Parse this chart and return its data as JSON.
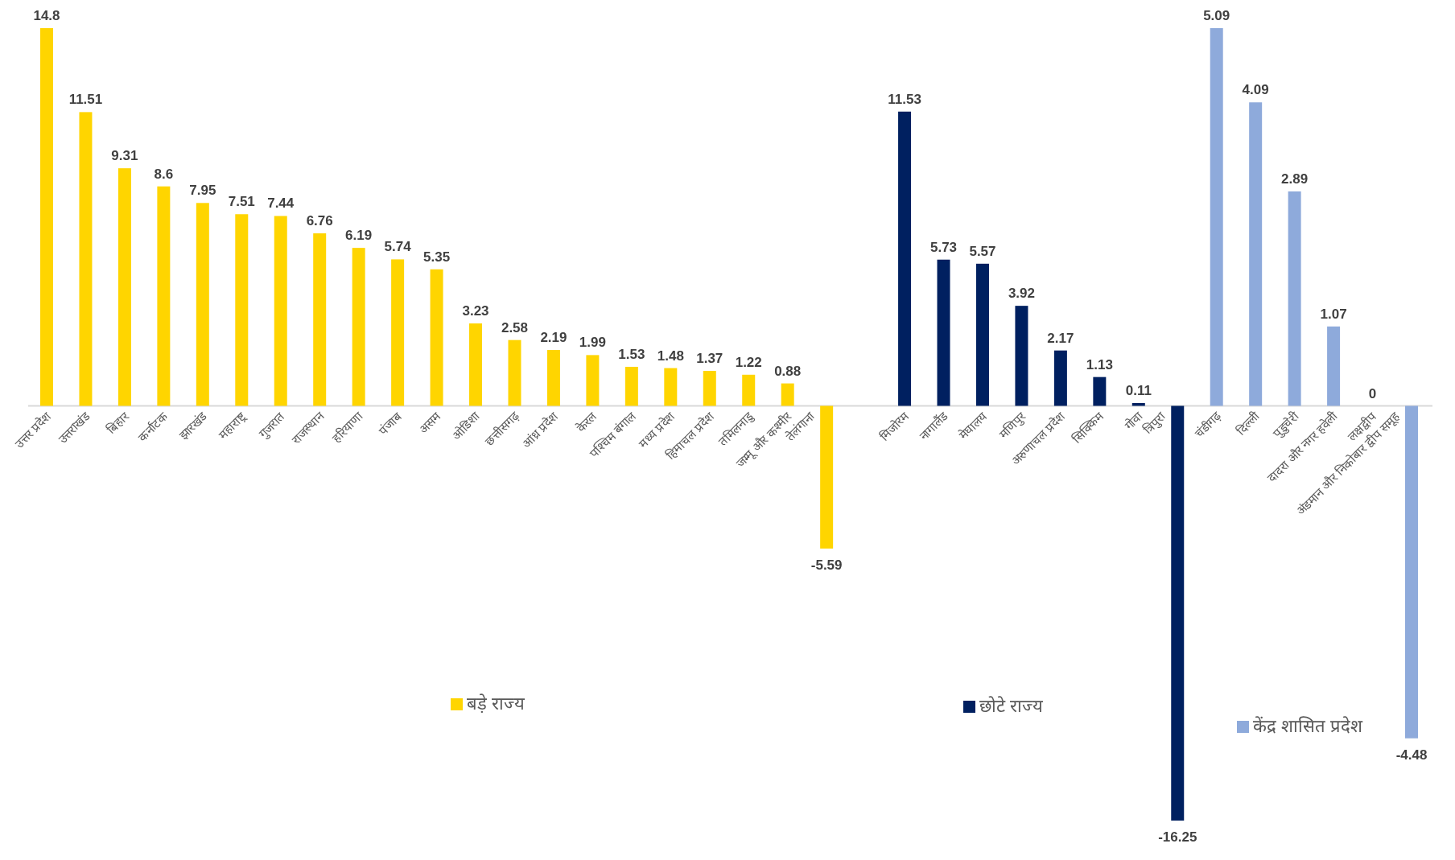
{
  "chart_data": {
    "type": "bar",
    "categories": [
      "उत्तर प्रदेश",
      "उत्तराखंड",
      "बिहार",
      "कर्नाटक",
      "झारखंड",
      "महाराष्ट्र",
      "गुजरात",
      "राजस्थान",
      "हरियाणा",
      "पंजाब",
      "असम",
      "ओडिशा",
      "छत्तीसगढ़",
      "आंध्र प्रदेश",
      "केरल",
      "पश्चिम बंगाल",
      "मध्य प्रदेश",
      "हिमाचल प्रदेश",
      "तमिलनाडु",
      "जम्मू और कश्मीर",
      "तेलंगाना",
      null,
      "मिजोरम",
      "नागालैंड",
      "मेघालय",
      "मणिपुर",
      "अरुणाचल प्रदेश",
      "सिक्किम",
      "गोवा",
      "त्रिपुरा",
      "चंडीगढ़",
      "दिल्ली",
      "पुडुचेरी",
      "दादरा और नगर हवेली",
      "लक्षद्वीप",
      "अंडमान और निकोबार द्वीप समूह"
    ],
    "series": [
      {
        "name": "बड़े राज्य",
        "color": "#ffd500",
        "values": [
          14.8,
          11.51,
          9.31,
          8.6,
          7.95,
          7.51,
          7.44,
          6.76,
          6.19,
          5.74,
          5.35,
          3.23,
          2.58,
          2.19,
          1.99,
          1.53,
          1.48,
          1.37,
          1.22,
          0.88,
          -5.59,
          null,
          null,
          null,
          null,
          null,
          null,
          null,
          null,
          null,
          null,
          null,
          null,
          null,
          null,
          null
        ]
      },
      {
        "name": "छोटे राज्य",
        "color": "#002060",
        "values": [
          null,
          null,
          null,
          null,
          null,
          null,
          null,
          null,
          null,
          null,
          null,
          null,
          null,
          null,
          null,
          null,
          null,
          null,
          null,
          null,
          null,
          null,
          11.53,
          5.73,
          5.57,
          3.92,
          2.17,
          1.13,
          0.11,
          -16.25,
          null,
          null,
          null,
          null,
          null,
          null
        ]
      },
      {
        "name": "केंद्र शासित प्रदेश",
        "color": "#8eaadb",
        "axis": "y2",
        "values": [
          null,
          null,
          null,
          null,
          null,
          null,
          null,
          null,
          null,
          null,
          null,
          null,
          null,
          null,
          null,
          null,
          null,
          null,
          null,
          null,
          null,
          null,
          null,
          null,
          null,
          null,
          null,
          null,
          null,
          null,
          5.09,
          4.09,
          2.89,
          1.07,
          0,
          -4.48
        ]
      }
    ],
    "data_labels": true,
    "legend": "bottom"
  }
}
